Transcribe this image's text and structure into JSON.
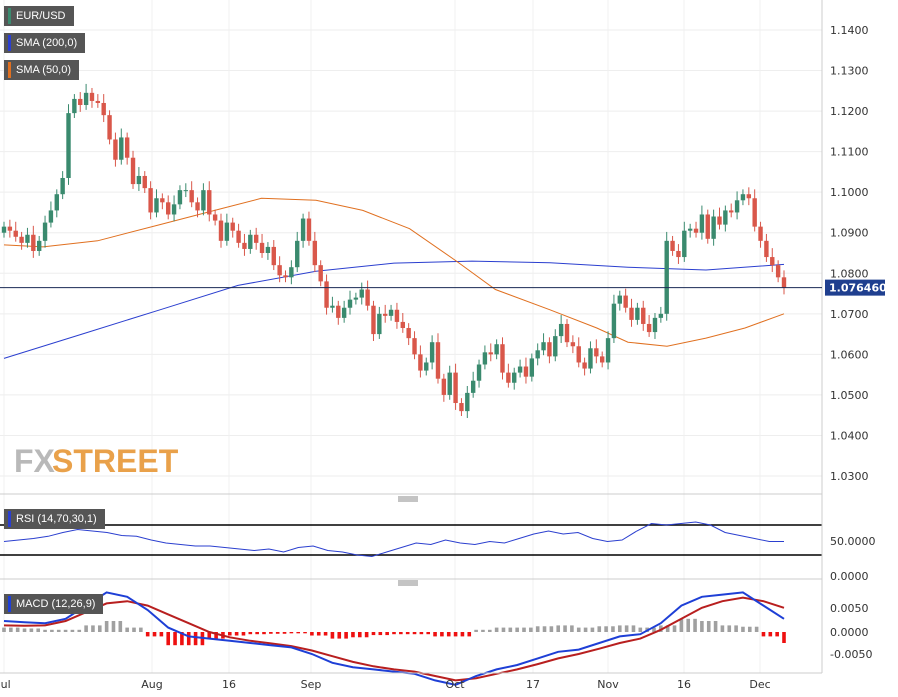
{
  "legend": {
    "symbol": "EUR/USD",
    "sma200": "SMA (200,0)",
    "sma50": "SMA (50,0)",
    "rsi": "RSI (14,70,30,1)",
    "macd": "MACD (12,26,9)"
  },
  "colors": {
    "up": "#3a8a6e",
    "down": "#d9574a",
    "sma200": "#2b3fcf",
    "sma50": "#e07020",
    "rsi": "#2b3fcf",
    "macd": "#1e3fd6",
    "signal": "#b81f1f",
    "hist_pos": "#a0a0a0",
    "hist_neg": "#ee1010",
    "brand": "#e9a14a"
  },
  "watermark": {
    "fx": "FX",
    "street": "STREET"
  },
  "chart_data": {
    "type": "candlestick",
    "symbol": "EUR/USD",
    "last_price": "1.076460",
    "price_axis": {
      "min": 1.025,
      "max": 1.147,
      "ticks": [
        "1.1400",
        "1.1300",
        "1.1200",
        "1.1100",
        "1.1000",
        "1.0900",
        "1.0800",
        "1.0700",
        "1.0600",
        "1.0500",
        "1.0400",
        "1.0300"
      ]
    },
    "time_axis": {
      "labels": [
        "Jul",
        "Aug",
        "16",
        "Sep",
        "Oct",
        "17",
        "Nov",
        "16",
        "Dec"
      ]
    },
    "candles_close": [
      1.0915,
      1.0905,
      1.089,
      1.0875,
      1.0895,
      1.0855,
      1.088,
      1.0925,
      1.0955,
      1.0995,
      1.1035,
      1.1195,
      1.123,
      1.1215,
      1.1245,
      1.1225,
      1.122,
      1.119,
      1.113,
      1.108,
      1.1135,
      1.1085,
      1.102,
      1.104,
      1.101,
      1.095,
      1.0985,
      1.0975,
      1.0945,
      1.097,
      1.1005,
      1.1005,
      1.0975,
      1.0955,
      1.1005,
      1.0945,
      1.093,
      1.088,
      1.0925,
      1.0905,
      1.0875,
      1.086,
      1.0895,
      1.0875,
      1.085,
      1.0865,
      1.082,
      1.0795,
      1.079,
      1.0815,
      1.088,
      1.0935,
      1.088,
      1.082,
      1.078,
      1.0715,
      1.072,
      1.069,
      1.0715,
      1.0735,
      1.074,
      1.076,
      1.072,
      1.065,
      1.07,
      1.0695,
      1.071,
      1.068,
      1.0665,
      1.064,
      1.06,
      1.056,
      1.058,
      1.063,
      1.054,
      1.05,
      1.0555,
      1.048,
      1.046,
      1.0505,
      1.0535,
      1.0575,
      1.0605,
      1.06,
      1.0625,
      1.0555,
      1.053,
      1.0555,
      1.057,
      1.0545,
      1.059,
      1.061,
      1.063,
      1.0595,
      1.0645,
      1.0675,
      1.063,
      1.062,
      1.058,
      1.0565,
      1.0615,
      1.0595,
      1.058,
      1.064,
      1.0725,
      1.0745,
      1.0715,
      1.0685,
      1.0715,
      1.0675,
      1.0655,
      1.069,
      1.07,
      1.088,
      1.0855,
      1.084,
      1.0905,
      1.091,
      1.09,
      1.0945,
      1.0885,
      1.094,
      1.092,
      1.0955,
      1.095,
      1.098,
      1.0995,
      1.0985,
      1.0915,
      1.088,
      1.084,
      1.082,
      1.079,
      1.0765
    ],
    "sma200": {
      "name": "SMA (200,0)",
      "x_frac": [
        0,
        0.1,
        0.2,
        0.3,
        0.4,
        0.5,
        0.6,
        0.7,
        0.8,
        0.9,
        1.0
      ],
      "values": [
        1.059,
        1.065,
        1.071,
        1.077,
        1.0805,
        1.0825,
        1.083,
        1.0826,
        1.0815,
        1.0808,
        1.0822
      ]
    },
    "sma50": {
      "name": "SMA (50,0)",
      "x_frac": [
        0,
        0.05,
        0.12,
        0.2,
        0.28,
        0.33,
        0.4,
        0.46,
        0.52,
        0.58,
        0.63,
        0.7,
        0.76,
        0.8,
        0.85,
        0.9,
        0.95,
        1.0
      ],
      "values": [
        1.087,
        1.0865,
        1.088,
        1.092,
        1.096,
        1.0985,
        1.098,
        1.0955,
        1.091,
        1.083,
        1.076,
        1.071,
        1.0665,
        1.063,
        1.062,
        1.064,
        1.0665,
        1.07
      ]
    },
    "rsi": {
      "levels": [
        70,
        30
      ],
      "axis": [
        "50.0000",
        "0.0000"
      ],
      "values": [
        48,
        50,
        52,
        55,
        60,
        64,
        62,
        60,
        56,
        55,
        50,
        46,
        44,
        42,
        42,
        40,
        38,
        36,
        38,
        34,
        40,
        42,
        36,
        34,
        30,
        28,
        34,
        40,
        46,
        44,
        50,
        46,
        44,
        48,
        46,
        52,
        58,
        62,
        58,
        60,
        52,
        48,
        50,
        62,
        72,
        70,
        72,
        74,
        70,
        60,
        56,
        52,
        48,
        48
      ]
    },
    "macd": {
      "axis": [
        "0.0050",
        "0.0000",
        "-0.0050"
      ],
      "macd_line": [
        0.0025,
        0.0022,
        0.002,
        0.003,
        0.006,
        0.009,
        0.008,
        0.005,
        0.001,
        -0.001,
        -0.0015,
        -0.002,
        -0.0025,
        -0.003,
        -0.0035,
        -0.005,
        -0.007,
        -0.008,
        -0.0085,
        -0.009,
        -0.0095,
        -0.011,
        -0.012,
        -0.01,
        -0.0085,
        -0.0075,
        -0.006,
        -0.0045,
        -0.004,
        -0.0025,
        -0.001,
        -0.0005,
        0.002,
        0.006,
        0.008,
        0.0085,
        0.009,
        0.006,
        0.003
      ],
      "signal_line": [
        0.0015,
        0.0014,
        0.0015,
        0.0025,
        0.0045,
        0.0065,
        0.007,
        0.006,
        0.004,
        0.002,
        0.0,
        -0.0012,
        -0.002,
        -0.0026,
        -0.0032,
        -0.0042,
        -0.0055,
        -0.0068,
        -0.0078,
        -0.0085,
        -0.009,
        -0.01,
        -0.011,
        -0.0105,
        -0.0095,
        -0.0085,
        -0.0073,
        -0.006,
        -0.005,
        -0.0038,
        -0.0025,
        -0.0015,
        0.0005,
        0.003,
        0.0055,
        0.007,
        0.0078,
        0.007,
        0.0055
      ]
    }
  }
}
